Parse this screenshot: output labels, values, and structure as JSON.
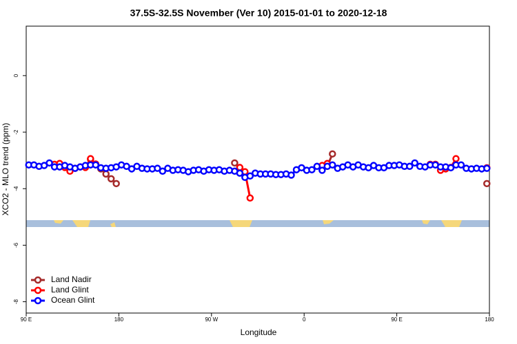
{
  "chart_data": {
    "type": "line",
    "title": "37.5S-32.5S November (Ver 10)   2015-01-01 to 2020-12-18",
    "x_label": "Longitude",
    "y_label": "XCO2 - MLO trend (ppm)",
    "xlim": [
      90,
      540
    ],
    "xticks": [
      {
        "value": 90,
        "label": "90 E"
      },
      180,
      {
        "value": 270,
        "label": "90 W"
      },
      {
        "value": 360,
        "label": "0"
      },
      {
        "value": 450,
        "label": "90 E"
      },
      {
        "value": 540,
        "label": "180"
      }
    ],
    "ylim": [
      -8.4,
      1.75
    ],
    "yticks": [
      0,
      -2,
      -4,
      -6,
      -8
    ],
    "legend": "bottom-left",
    "x": [
      92.5,
      97.5,
      102.5,
      107.5,
      112.5,
      117.5,
      122.5,
      127.5,
      132.5,
      137.5,
      142.5,
      147.5,
      152.5,
      157.5,
      162.5,
      167.5,
      172.5,
      177.5,
      182.5,
      187.5,
      192.5,
      197.5,
      202.5,
      207.5,
      212.5,
      217.5,
      222.5,
      227.5,
      232.5,
      237.5,
      242.5,
      247.5,
      252.5,
      257.5,
      262.5,
      267.5,
      272.5,
      277.5,
      282.5,
      287.5,
      292.5,
      297.5,
      302.5,
      307.5,
      312.5,
      317.5,
      322.5,
      327.5,
      332.5,
      337.5,
      342.5,
      347.5,
      352.5,
      357.5,
      362.5,
      367.5,
      372.5,
      377.5,
      382.5,
      387.5,
      392.5,
      397.5,
      402.5,
      407.5,
      412.5,
      417.5,
      422.5,
      427.5,
      432.5,
      437.5,
      442.5,
      447.5,
      452.5,
      457.5,
      462.5,
      467.5,
      472.5,
      477.5,
      482.5,
      487.5,
      492.5,
      497.5,
      502.5,
      507.5,
      512.5,
      517.5,
      522.5,
      527.5,
      532.5,
      537.5
    ],
    "series": [
      {
        "name": "Land Nadir",
        "color": "#a52a2a",
        "values": [
          null,
          null,
          null,
          null,
          null,
          null,
          null,
          null,
          null,
          null,
          null,
          null,
          -2.96,
          -3.13,
          -3.3,
          -3.48,
          -3.65,
          -3.82,
          null,
          null,
          null,
          null,
          null,
          null,
          null,
          null,
          null,
          null,
          null,
          null,
          null,
          null,
          null,
          null,
          null,
          null,
          null,
          null,
          null,
          null,
          -3.09,
          -3.3,
          null,
          null,
          null,
          null,
          null,
          null,
          null,
          null,
          null,
          null,
          null,
          null,
          null,
          null,
          null,
          null,
          -3.21,
          -2.77,
          null,
          null,
          null,
          null,
          null,
          null,
          null,
          null,
          null,
          null,
          null,
          null,
          null,
          null,
          null,
          null,
          null,
          null,
          null,
          null,
          null,
          null,
          null,
          null,
          null,
          null,
          null,
          null,
          null,
          -3.82
        ]
      },
      {
        "name": "Land Glint",
        "color": "#ff0000",
        "values": [
          null,
          null,
          null,
          null,
          null,
          -3.14,
          -3.11,
          -3.25,
          -3.38,
          -3.28,
          -3.23,
          -3.25,
          -2.94,
          -3.13,
          null,
          null,
          null,
          null,
          null,
          null,
          null,
          null,
          null,
          null,
          null,
          null,
          null,
          null,
          null,
          null,
          null,
          null,
          null,
          null,
          null,
          null,
          null,
          null,
          null,
          null,
          null,
          -3.25,
          -3.4,
          -4.33,
          null,
          null,
          null,
          null,
          null,
          null,
          null,
          null,
          null,
          null,
          null,
          null,
          null,
          -3.18,
          -3.11,
          null,
          null,
          null,
          null,
          null,
          null,
          null,
          null,
          null,
          null,
          null,
          null,
          null,
          null,
          null,
          null,
          null,
          null,
          null,
          -3.14,
          -3.14,
          -3.35,
          -3.3,
          -3.25,
          -2.94,
          null,
          null,
          null,
          null,
          null,
          -3.26
        ]
      },
      {
        "name": "Ocean Glint",
        "color": "#0000ff",
        "values": [
          -3.16,
          -3.16,
          -3.21,
          -3.18,
          -3.09,
          -3.23,
          -3.23,
          -3.18,
          -3.23,
          -3.28,
          -3.23,
          -3.18,
          -3.16,
          -3.16,
          -3.26,
          -3.28,
          -3.26,
          -3.23,
          -3.16,
          -3.21,
          -3.3,
          -3.21,
          -3.28,
          -3.3,
          -3.3,
          -3.28,
          -3.38,
          -3.28,
          -3.35,
          -3.33,
          -3.35,
          -3.4,
          -3.35,
          -3.33,
          -3.38,
          -3.33,
          -3.35,
          -3.33,
          -3.38,
          -3.35,
          -3.38,
          -3.45,
          -3.6,
          -3.55,
          -3.45,
          -3.48,
          -3.48,
          -3.48,
          -3.5,
          -3.5,
          -3.48,
          -3.52,
          -3.33,
          -3.26,
          -3.35,
          -3.33,
          -3.21,
          -3.35,
          -3.21,
          -3.16,
          -3.28,
          -3.23,
          -3.16,
          -3.23,
          -3.16,
          -3.23,
          -3.26,
          -3.18,
          -3.26,
          -3.26,
          -3.18,
          -3.18,
          -3.16,
          -3.21,
          -3.21,
          -3.09,
          -3.21,
          -3.23,
          -3.16,
          -3.16,
          -3.23,
          -3.23,
          -3.26,
          -3.16,
          -3.16,
          -3.28,
          -3.3,
          -3.28,
          -3.3,
          -3.28
        ]
      }
    ]
  }
}
